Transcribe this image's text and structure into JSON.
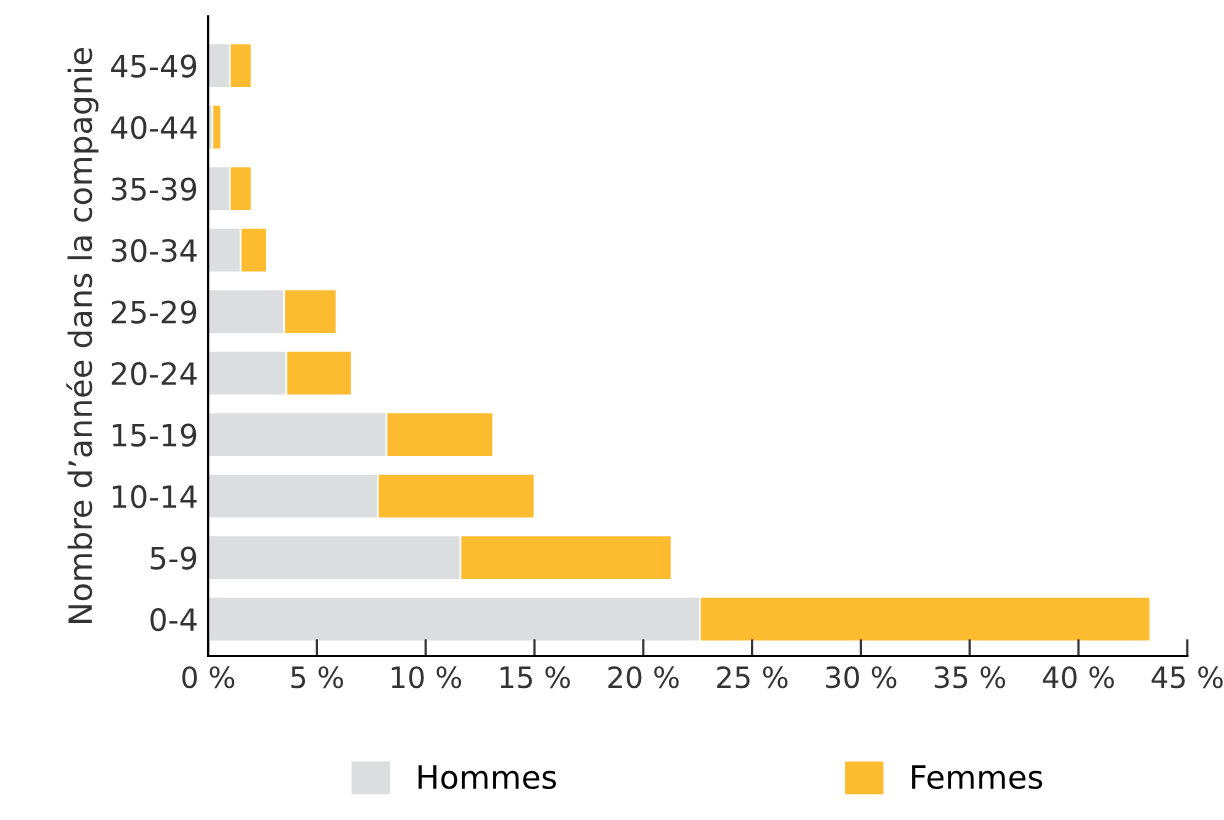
{
  "chart_data": {
    "type": "bar",
    "orientation": "horizontal",
    "stacked": true,
    "ylabel": "Nombre d’année dans la compagnie",
    "categories": [
      "45-49",
      "40-44",
      "35-39",
      "30-34",
      "25-29",
      "20-24",
      "15-19",
      "10-14",
      "5-9",
      "0-4"
    ],
    "series": [
      {
        "name": "Hommes",
        "color": "#dcdddf",
        "values": [
          1.0,
          0.2,
          1.0,
          1.5,
          3.5,
          3.6,
          8.2,
          7.8,
          11.6,
          22.6
        ]
      },
      {
        "name": "Femmes",
        "color": "#fdbb30",
        "values": [
          1.0,
          0.4,
          1.0,
          1.2,
          2.4,
          3.0,
          4.9,
          7.2,
          9.7,
          20.7
        ]
      }
    ],
    "xlim": [
      0,
      45
    ],
    "xticks": [
      {
        "value": 0,
        "label": "0 %"
      },
      {
        "value": 5,
        "label": "5 %"
      },
      {
        "value": 10,
        "label": "10 %"
      },
      {
        "value": 15,
        "label": "15 %"
      },
      {
        "value": 20,
        "label": "20 %"
      },
      {
        "value": 25,
        "label": "25 %"
      },
      {
        "value": 30,
        "label": "30 %"
      },
      {
        "value": 35,
        "label": "35 %"
      },
      {
        "value": 40,
        "label": "40 %"
      },
      {
        "value": 45,
        "label": "45 %"
      }
    ],
    "grid": false,
    "legend": "bottom"
  }
}
